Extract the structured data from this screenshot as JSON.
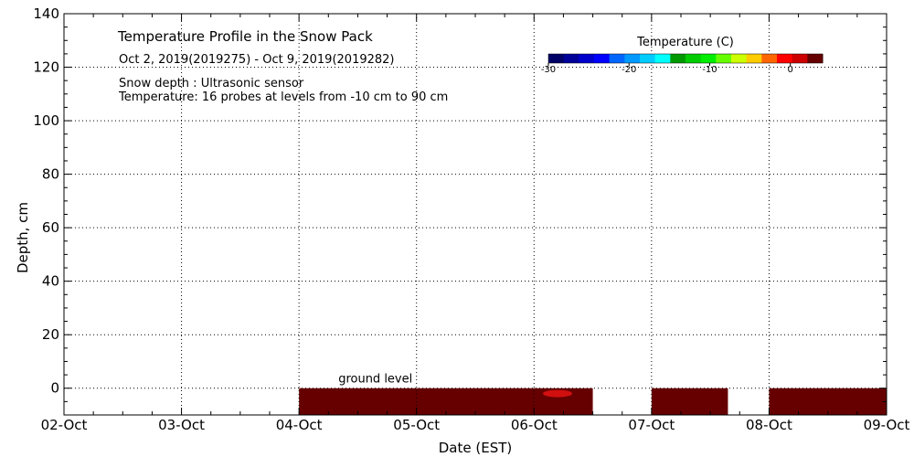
{
  "chart_data": {
    "type": "heatmap",
    "title": "Temperature Profile in the Snow Pack",
    "subtitle": "Oct  2, 2019(2019275) - Oct  9, 2019(2019282)",
    "notes": [
      "Snow depth : Ultrasonic sensor",
      "Temperature: 16 probes at levels from -10 cm to 90 cm"
    ],
    "xlabel": "Date (EST)",
    "ylabel": "Depth, cm",
    "x_ticks": [
      "02-Oct",
      "03-Oct",
      "04-Oct",
      "05-Oct",
      "06-Oct",
      "07-Oct",
      "08-Oct",
      "09-Oct"
    ],
    "xlim": [
      0,
      7
    ],
    "ylim": [
      -10,
      140
    ],
    "y_ticks": [
      0,
      20,
      40,
      60,
      80,
      100,
      120,
      140
    ],
    "grid": true,
    "ground_level_label": "ground level",
    "ground_level_depth": 0,
    "colorbar": {
      "title": "Temperature (C)",
      "position": "top-right",
      "range": [
        -30,
        4
      ],
      "ticks": [
        -30,
        -20,
        -10,
        0
      ],
      "colors": [
        "#000066",
        "#000099",
        "#0000cc",
        "#0000ff",
        "#0066ff",
        "#0099ff",
        "#00ccff",
        "#00ffff",
        "#009900",
        "#00cc00",
        "#00ee00",
        "#66ff00",
        "#ccff00",
        "#ffcc00",
        "#ff6600",
        "#ff0000",
        "#cc0000",
        "#660000"
      ]
    },
    "series": [
      {
        "segments": [
          {
            "x_start": 2.0,
            "x_end": 4.5,
            "depth_top": 0,
            "depth_bottom": -10,
            "color": "#660000"
          },
          {
            "x_start": 5.0,
            "x_end": 5.65,
            "depth_top": 0,
            "depth_bottom": -10,
            "color": "#660000"
          },
          {
            "x_start": 6.0,
            "x_end": 7.0,
            "depth_top": 0,
            "depth_bottom": -10,
            "color": "#660000"
          }
        ],
        "highlights": [
          {
            "x": 4.2,
            "depth": -2,
            "color": "#dd1111"
          }
        ]
      }
    ]
  }
}
